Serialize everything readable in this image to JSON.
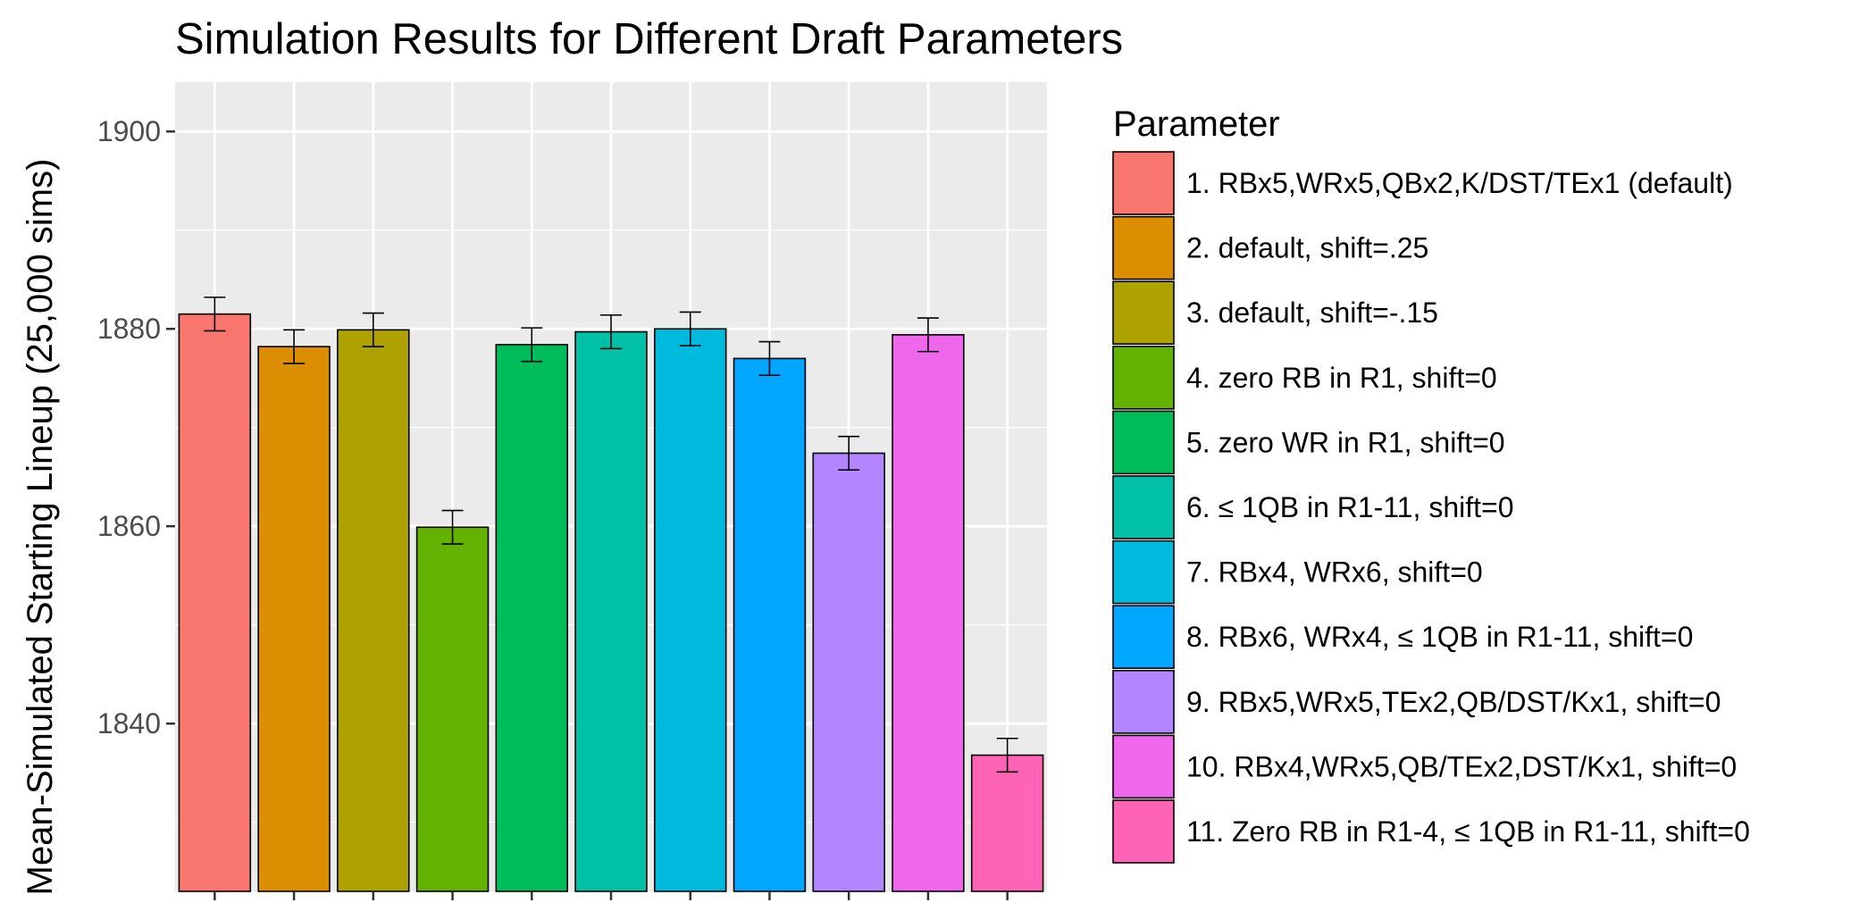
{
  "chart_data": {
    "type": "bar",
    "title": "Simulation Results for Different Draft Parameters",
    "subtitle": "",
    "xlabel": "",
    "ylabel": "Mean-Simulated Starting Lineup (25,000 sims)",
    "ylim": [
      1823,
      1905
    ],
    "yticks": [
      1840,
      1860,
      1880,
      1900
    ],
    "grid": true,
    "legend_position": "right",
    "legend_title": "Parameter",
    "series": [
      {
        "name": "1. RBx5,WRx5,QBx2,K/DST/TEx1 (default)",
        "value": 1881.5,
        "err_low": 1879.8,
        "err_high": 1883.2,
        "color": "#F8766D"
      },
      {
        "name": "2. default, shift=.25",
        "value": 1878.2,
        "err_low": 1876.5,
        "err_high": 1879.9,
        "color": "#DB8E00"
      },
      {
        "name": "3. default, shift=-.15",
        "value": 1879.9,
        "err_low": 1878.2,
        "err_high": 1881.6,
        "color": "#AEA200"
      },
      {
        "name": "4. zero RB in R1, shift=0",
        "value": 1859.9,
        "err_low": 1858.2,
        "err_high": 1861.6,
        "color": "#64B200"
      },
      {
        "name": "5. zero WR in R1, shift=0",
        "value": 1878.4,
        "err_low": 1876.7,
        "err_high": 1880.1,
        "color": "#00BD5C"
      },
      {
        "name": "6. ≤ 1QB in R1-11, shift=0",
        "value": 1879.7,
        "err_low": 1878.0,
        "err_high": 1881.4,
        "color": "#00C1A7"
      },
      {
        "name": "7. RBx4, WRx6, shift=0",
        "value": 1880.0,
        "err_low": 1878.3,
        "err_high": 1881.7,
        "color": "#00BADE"
      },
      {
        "name": "8. RBx6, WRx4, ≤ 1QB in R1-11, shift=0",
        "value": 1877.0,
        "err_low": 1875.3,
        "err_high": 1878.7,
        "color": "#00A6FF"
      },
      {
        "name": "9. RBx5,WRx5,TEx2,QB/DST/Kx1, shift=0",
        "value": 1867.4,
        "err_low": 1865.7,
        "err_high": 1869.1,
        "color": "#B385FF"
      },
      {
        "name": "10. RBx4,WRx5,QB/TEx2,DST/Kx1, shift=0",
        "value": 1879.4,
        "err_low": 1877.7,
        "err_high": 1881.1,
        "color": "#EF67EB"
      },
      {
        "name": "11. Zero RB in R1-4, ≤ 1QB in R1-11,  shift=0",
        "value": 1836.8,
        "err_low": 1835.1,
        "err_high": 1838.5,
        "color": "#FF63B6"
      }
    ]
  },
  "colors": {
    "panel_background": "#EBEBEB",
    "grid": "#FFFFFF",
    "bar_outline": "#000000",
    "tick_text": "#4D4D4D"
  }
}
